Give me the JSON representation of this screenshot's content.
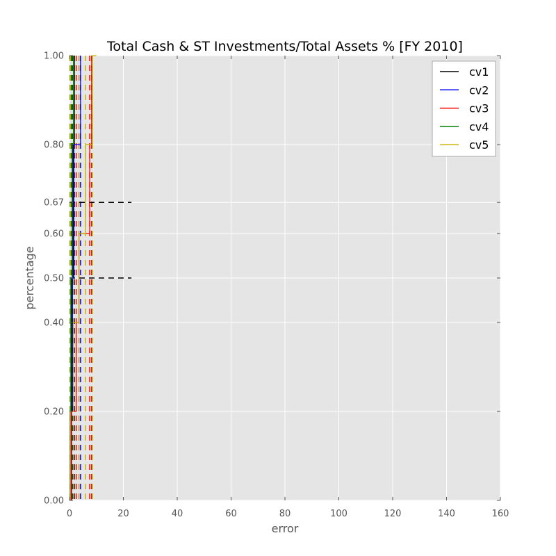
{
  "chart_data": {
    "type": "line",
    "title": "Total Cash & ST Investments/Total Assets % [FY 2010]",
    "xlabel": "error",
    "ylabel": "percentage",
    "xlim": [
      0,
      160
    ],
    "ylim": [
      0,
      1
    ],
    "xticks": [
      0,
      20,
      40,
      60,
      80,
      100,
      120,
      140,
      160
    ],
    "xtick_labels": [
      "0",
      "20",
      "40",
      "60",
      "80",
      "100",
      "120",
      "140",
      "160"
    ],
    "yticks": [
      0.0,
      0.2,
      0.4,
      0.5,
      0.6,
      0.67,
      0.8,
      1.0
    ],
    "ytick_labels": [
      "0.00",
      "0.20",
      "0.40",
      "0.50",
      "0.60",
      "0.67",
      "0.80",
      "1.00"
    ],
    "grid": true,
    "legend_position": "top-right",
    "series": [
      {
        "name": "cv1",
        "color": "#000000",
        "x": [
          0.3,
          0.3,
          0.8,
          0.8,
          1.3,
          1.3,
          1.8,
          1.8
        ],
        "y": [
          0,
          0.2,
          0.2,
          0.5,
          0.5,
          0.8,
          0.8,
          1.0
        ],
        "thresholds": [
          0.3,
          0.8,
          1.3,
          1.8
        ]
      },
      {
        "name": "cv2",
        "color": "#0000ff",
        "x": [
          0.5,
          0.5,
          1.1,
          1.1,
          1.6,
          1.6,
          4.1,
          4.1
        ],
        "y": [
          0,
          0.2,
          0.2,
          0.5,
          0.5,
          0.8,
          0.8,
          1.0
        ],
        "thresholds": [
          0.5,
          1.1,
          1.6,
          4.1
        ]
      },
      {
        "name": "cv3",
        "color": "#ff0000",
        "x": [
          0.8,
          0.8,
          2.5,
          2.5,
          3.5,
          3.5,
          7.5,
          7.5,
          8.2,
          8.2
        ],
        "y": [
          0,
          0.2,
          0.2,
          0.4,
          0.4,
          0.6,
          0.6,
          0.8,
          0.8,
          1.0
        ],
        "thresholds": [
          0.8,
          2.5,
          3.5,
          7.5,
          8.2
        ]
      },
      {
        "name": "cv4",
        "color": "#008000",
        "x": [
          0.2,
          0.2,
          0.5,
          0.5,
          1.0,
          1.0,
          1.5,
          1.5
        ],
        "y": [
          0,
          0.2,
          0.2,
          0.5,
          0.5,
          0.8,
          0.8,
          1.0
        ],
        "thresholds": [
          0.2,
          0.5,
          1.0,
          1.5
        ]
      },
      {
        "name": "cv5",
        "color": "#c8b400",
        "x": [
          0.3,
          0.3,
          1.5,
          1.5,
          3.5,
          3.5,
          6.0,
          6.0,
          8.5,
          8.5,
          10.0
        ],
        "y": [
          0,
          0.2,
          0.2,
          0.4,
          0.4,
          0.6,
          0.6,
          0.8,
          0.8,
          1.0,
          1.0
        ],
        "thresholds": [
          0.3,
          1.5,
          3.5,
          6.0,
          8.5
        ]
      }
    ],
    "reference_lines": [
      {
        "y": 0.67,
        "x_start": 0,
        "x_end": 23,
        "color": "#000000"
      },
      {
        "y": 0.5,
        "x_start": 0,
        "x_end": 23,
        "color": "#000000"
      }
    ]
  }
}
